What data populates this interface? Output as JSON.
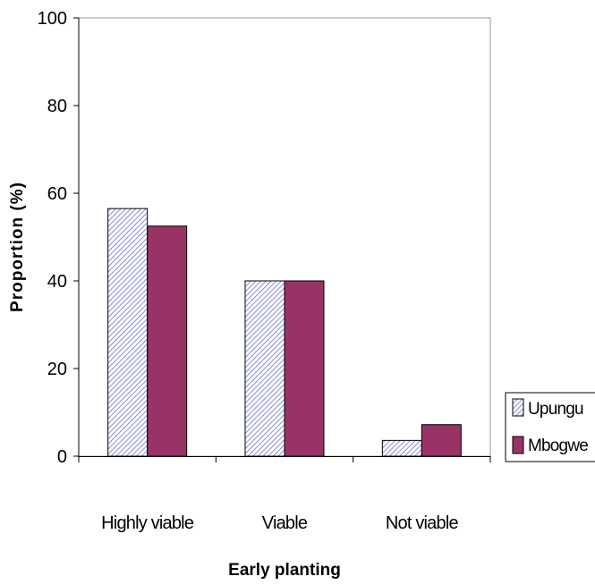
{
  "chart_data": {
    "type": "bar",
    "categories": [
      "Highly viable",
      "Viable",
      "Not viable"
    ],
    "series": [
      {
        "name": "Upungu",
        "values": [
          56.5,
          40,
          3.6
        ],
        "color": "#c9cbf2",
        "pattern": "diagonal-hatch"
      },
      {
        "name": "Mbogwe",
        "values": [
          52.5,
          40,
          7.2
        ],
        "color": "#993366"
      }
    ],
    "title": "",
    "xlabel": "Early planting",
    "ylabel": "Proportion (%)",
    "ylim": [
      0,
      100
    ],
    "yticks": [
      0,
      20,
      40,
      60,
      80,
      100
    ],
    "grid": false,
    "legend": "right"
  }
}
